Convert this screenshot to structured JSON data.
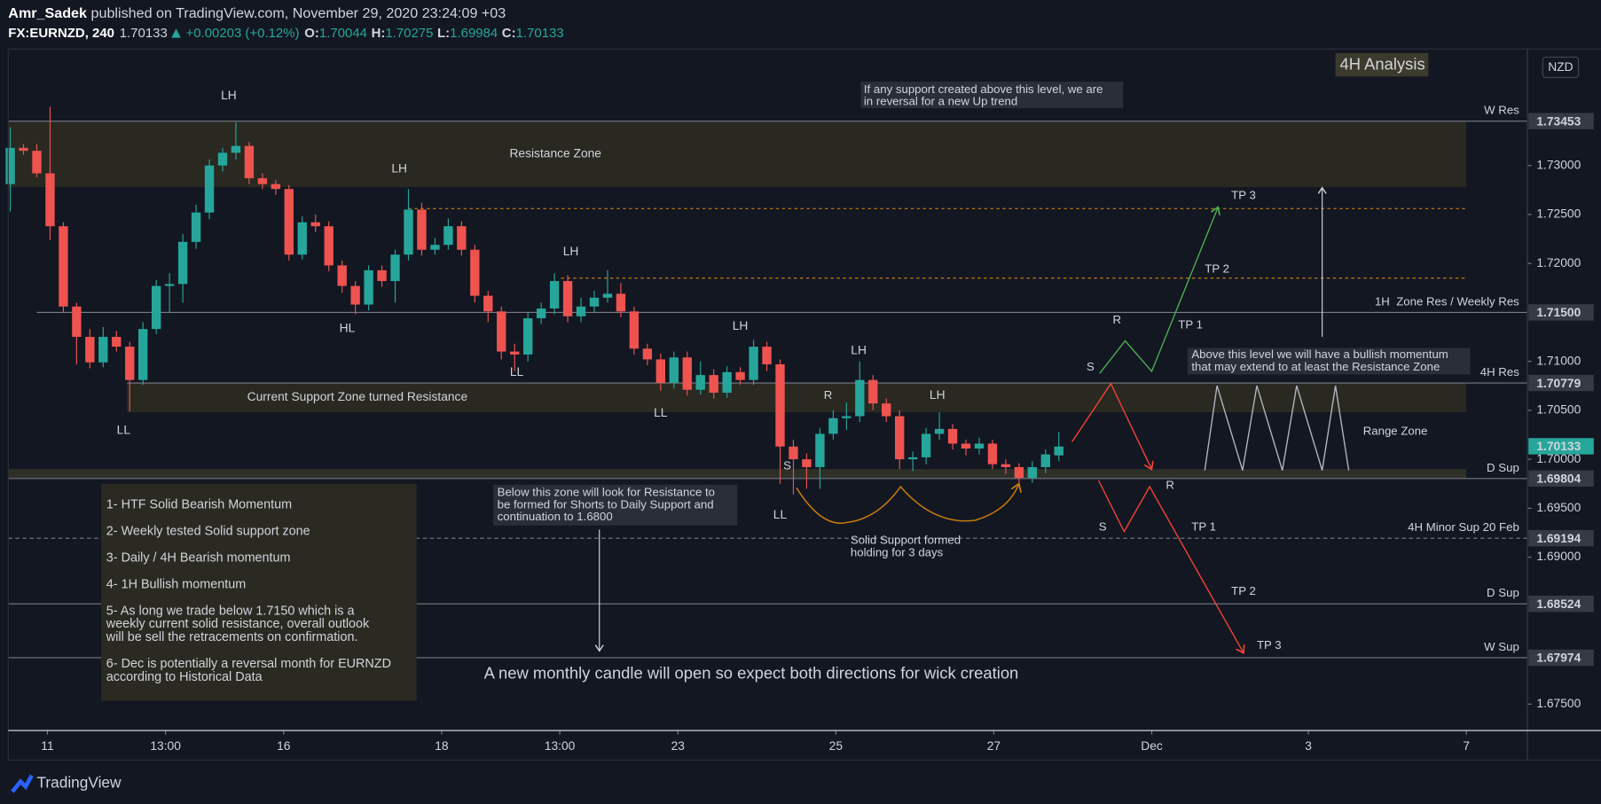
{
  "header": {
    "author": "Amr_Sadek",
    "published": "published on TradingView.com, November 29, 2020 23:24:09 +03",
    "symbol": "FX:EURNZD, 240",
    "last": 1.70133,
    "change": "+0.00203 (+0.12%)",
    "ohlc": [
      {
        "label": "O:",
        "value": 1.70044
      },
      {
        "label": "H:",
        "value": 1.70275
      },
      {
        "label": "L:",
        "value": 1.69984
      },
      {
        "label": "C:",
        "value": 1.70133
      }
    ]
  },
  "chart_data": {
    "type": "candlestick",
    "title": "4H Analysis",
    "currency": "NZD",
    "up_color": "#26a69a",
    "down_color": "#ef5350",
    "candles": [
      [
        1.7281,
        1.7339,
        1.7253,
        1.7318
      ],
      [
        1.7318,
        1.7322,
        1.7311,
        1.7315
      ],
      [
        1.7315,
        1.7322,
        1.7288,
        1.7292
      ],
      [
        1.7292,
        1.736,
        1.7224,
        1.7238
      ],
      [
        1.7238,
        1.7242,
        1.715,
        1.7156
      ],
      [
        1.7156,
        1.716,
        1.7097,
        1.7125
      ],
      [
        1.7125,
        1.7133,
        1.7093,
        1.7099
      ],
      [
        1.7099,
        1.7135,
        1.7094,
        1.7125
      ],
      [
        1.7125,
        1.7131,
        1.711,
        1.7115
      ],
      [
        1.7115,
        1.712,
        1.7049,
        1.7081
      ],
      [
        1.7081,
        1.714,
        1.7076,
        1.7133
      ],
      [
        1.7133,
        1.7183,
        1.7128,
        1.7177
      ],
      [
        1.7177,
        1.719,
        1.715,
        1.7179
      ],
      [
        1.7179,
        1.723,
        1.716,
        1.7222
      ],
      [
        1.7222,
        1.726,
        1.7215,
        1.7252
      ],
      [
        1.7252,
        1.7306,
        1.7245,
        1.73
      ],
      [
        1.73,
        1.7318,
        1.7294,
        1.7313
      ],
      [
        1.7313,
        1.7344,
        1.7306,
        1.732
      ],
      [
        1.732,
        1.7324,
        1.7281,
        1.7287
      ],
      [
        1.7287,
        1.7292,
        1.7276,
        1.7281
      ],
      [
        1.7281,
        1.7285,
        1.727,
        1.7276
      ],
      [
        1.7276,
        1.728,
        1.7203,
        1.7209
      ],
      [
        1.7209,
        1.7248,
        1.7204,
        1.7242
      ],
      [
        1.7242,
        1.725,
        1.7232,
        1.7238
      ],
      [
        1.7238,
        1.7243,
        1.7192,
        1.7198
      ],
      [
        1.7198,
        1.7203,
        1.717,
        1.7177
      ],
      [
        1.7177,
        1.7182,
        1.7148,
        1.7158
      ],
      [
        1.7158,
        1.7198,
        1.7152,
        1.7193
      ],
      [
        1.7193,
        1.7198,
        1.7176,
        1.7182
      ],
      [
        1.7182,
        1.7214,
        1.716,
        1.7209
      ],
      [
        1.7209,
        1.7276,
        1.7203,
        1.7255
      ],
      [
        1.7255,
        1.7262,
        1.7208,
        1.7214
      ],
      [
        1.7214,
        1.7226,
        1.7209,
        1.7219
      ],
      [
        1.7219,
        1.7246,
        1.7214,
        1.7238
      ],
      [
        1.7238,
        1.7243,
        1.7208,
        1.7214
      ],
      [
        1.7214,
        1.7219,
        1.716,
        1.7167
      ],
      [
        1.7167,
        1.7172,
        1.714,
        1.7151
      ],
      [
        1.7151,
        1.7156,
        1.7102,
        1.711
      ],
      [
        1.711,
        1.7118,
        1.709,
        1.7107
      ],
      [
        1.7107,
        1.715,
        1.71,
        1.7144
      ],
      [
        1.7144,
        1.716,
        1.7138,
        1.7154
      ],
      [
        1.7154,
        1.719,
        1.7148,
        1.7182
      ],
      [
        1.7182,
        1.7188,
        1.714,
        1.7146
      ],
      [
        1.7146,
        1.7165,
        1.714,
        1.7156
      ],
      [
        1.7156,
        1.7172,
        1.715,
        1.7165
      ],
      [
        1.7165,
        1.7193,
        1.716,
        1.7169
      ],
      [
        1.7169,
        1.718,
        1.7145,
        1.7151
      ],
      [
        1.7151,
        1.7156,
        1.7107,
        1.7113
      ],
      [
        1.7113,
        1.7118,
        1.7096,
        1.7102
      ],
      [
        1.7102,
        1.7108,
        1.707,
        1.7078
      ],
      [
        1.7078,
        1.711,
        1.7072,
        1.7104
      ],
      [
        1.7104,
        1.711,
        1.7065,
        1.7071
      ],
      [
        1.7071,
        1.71,
        1.7066,
        1.7086
      ],
      [
        1.7086,
        1.7092,
        1.7062,
        1.7068
      ],
      [
        1.7068,
        1.7095,
        1.7063,
        1.7089
      ],
      [
        1.7089,
        1.7094,
        1.7076,
        1.7081
      ],
      [
        1.7081,
        1.7122,
        1.7076,
        1.7115
      ],
      [
        1.7115,
        1.712,
        1.709,
        1.7097
      ],
      [
        1.7097,
        1.7102,
        1.6975,
        1.7013
      ],
      [
        1.7013,
        1.702,
        1.6964,
        1.7
      ],
      [
        1.7,
        1.7006,
        1.697,
        1.6992
      ],
      [
        1.6992,
        1.7032,
        1.697,
        1.7026
      ],
      [
        1.7026,
        1.705,
        1.702,
        1.7042
      ],
      [
        1.7042,
        1.7058,
        1.703,
        1.7044
      ],
      [
        1.7044,
        1.71,
        1.7038,
        1.7081
      ],
      [
        1.7081,
        1.7086,
        1.705,
        1.7057
      ],
      [
        1.7057,
        1.7062,
        1.7038,
        1.7044
      ],
      [
        1.7044,
        1.705,
        1.699,
        1.7
      ],
      [
        1.7,
        1.7008,
        1.6988,
        1.7002
      ],
      [
        1.7002,
        1.7032,
        1.6995,
        1.7026
      ],
      [
        1.7026,
        1.7048,
        1.702,
        1.7031
      ],
      [
        1.7031,
        1.7036,
        1.701,
        1.7016
      ],
      [
        1.7016,
        1.702,
        1.7004,
        1.7011
      ],
      [
        1.7011,
        1.7022,
        1.7005,
        1.7016
      ],
      [
        1.7016,
        1.702,
        1.699,
        1.6995
      ],
      [
        1.6995,
        1.7,
        1.6985,
        1.6992
      ],
      [
        1.6992,
        1.6996,
        1.6976,
        1.6981
      ],
      [
        1.6981,
        1.6998,
        1.6976,
        1.6992
      ],
      [
        1.6992,
        1.701,
        1.6986,
        1.7005
      ],
      [
        1.7004,
        1.7028,
        1.6998,
        1.7013
      ]
    ],
    "xlim": [
      -0.15,
      114.3
    ],
    "xticks": [
      {
        "value": 2.8,
        "label": "11"
      },
      {
        "value": 11.7,
        "label": "13:00"
      },
      {
        "value": 20.6,
        "label": "16"
      },
      {
        "value": 32.5,
        "label": "18"
      },
      {
        "value": 41.4,
        "label": "13:00"
      },
      {
        "value": 50.3,
        "label": "23"
      },
      {
        "value": 62.2,
        "label": "25"
      },
      {
        "value": 74.1,
        "label": "27"
      },
      {
        "value": 86,
        "label": "Dec"
      },
      {
        "value": 97.8,
        "label": "3"
      },
      {
        "value": 109.7,
        "label": "7"
      }
    ],
    "ylim": [
      1.6723,
      1.7419
    ],
    "yticks": [
      {
        "value": 1.675,
        "label": "1.67500"
      },
      {
        "value": 1.69,
        "label": "1.69000"
      },
      {
        "value": 1.695,
        "label": "1.69500"
      },
      {
        "value": 1.7,
        "label": "1.70000"
      },
      {
        "value": 1.705,
        "label": "1.70500"
      },
      {
        "value": 1.71,
        "label": "1.71000"
      },
      {
        "value": 1.72,
        "label": "1.72000"
      },
      {
        "value": 1.725,
        "label": "1.72500"
      },
      {
        "value": 1.73,
        "label": "1.73000"
      }
    ],
    "last_price": 1.70133,
    "levels": [
      {
        "name": "W Res",
        "price": 1.73453
      },
      {
        "name": "1H  Zone Res / Weekly Res",
        "price": {
          "value": 1.715,
          "label": "1.71500"
        }
      },
      {
        "name": "4H Res",
        "price": 1.70779
      },
      {
        "name": "D Sup",
        "price": 1.69804
      },
      {
        "name": "4H Minor Sup 20 Feb",
        "price": 1.69194
      },
      {
        "name": "D Sup",
        "price": 1.68524
      },
      {
        "name": "W Sup",
        "price": 1.67974
      }
    ],
    "dashed_levels": [
      1.7256,
      1.7185
    ],
    "zones": [
      {
        "label": "Resistance Zone",
        "top": 1.73453,
        "bottom": 1.7278
      },
      {
        "label": "Current Support Zone turned Resistance",
        "top": 1.70779,
        "bottom": 1.7048
      },
      {
        "top": 1.699,
        "bottom": 1.6981
      }
    ],
    "swing_labels": [
      {
        "text": "LH",
        "color": "#f44336"
      },
      {
        "text": "LH",
        "color": "#f44336"
      },
      {
        "text": "LH",
        "color": "#f44336"
      },
      {
        "text": "LH",
        "color": "#f44336"
      },
      {
        "text": "LH",
        "color": "#f44336"
      },
      {
        "text": "LH",
        "color": "#f44336"
      },
      {
        "text": "LL",
        "color": "#f44336"
      },
      {
        "text": "LL",
        "color": "#f44336"
      },
      {
        "text": "LL",
        "color": "#f44336"
      },
      {
        "text": "LL",
        "color": "#f44336"
      },
      {
        "text": "HL",
        "color": "#4caf50"
      }
    ],
    "trade_labels": [
      "TP 3",
      "TP 2",
      "TP 1",
      "R",
      "S",
      "R",
      "S",
      "R",
      "S",
      "TP 1",
      "TP 2",
      "TP 3"
    ],
    "notes": [
      {
        "lines": [
          "If any support created above this level, we are",
          "in reversal for a new Up trend"
        ]
      },
      {
        "lines": [
          "Above this level we will have a bullish momentum",
          "that may extend to at least the Resistance Zone"
        ]
      },
      {
        "lines": [
          "Below this zone will look for Resistance to",
          "be formed for Shorts to Daily Support and",
          "continuation to 1.6800"
        ]
      },
      {
        "lines": [
          "Solid Support formed",
          "holding for 3 days"
        ]
      },
      {
        "lines": [
          "Range Zone"
        ]
      }
    ],
    "plan": [
      [
        "1- HTF Solid Bearish Momentum"
      ],
      [
        "2- Weekly tested Solid support zone"
      ],
      [
        "3- Daily / 4H Bearish momentum"
      ],
      [
        "4- 1H Bullish momentum"
      ],
      [
        "5- As long we trade below 1.7150 which is a",
        "weekly current solid resistance, overall outlook",
        "will be sell the retracements on confirmation."
      ],
      [
        "6- Dec is potentially a reversal month for EURNZD",
        "according to Historical Data"
      ]
    ],
    "warning": "A new monthly candle will open so expect both directions for wick creation"
  },
  "footer": {
    "brand": "TradingView"
  }
}
